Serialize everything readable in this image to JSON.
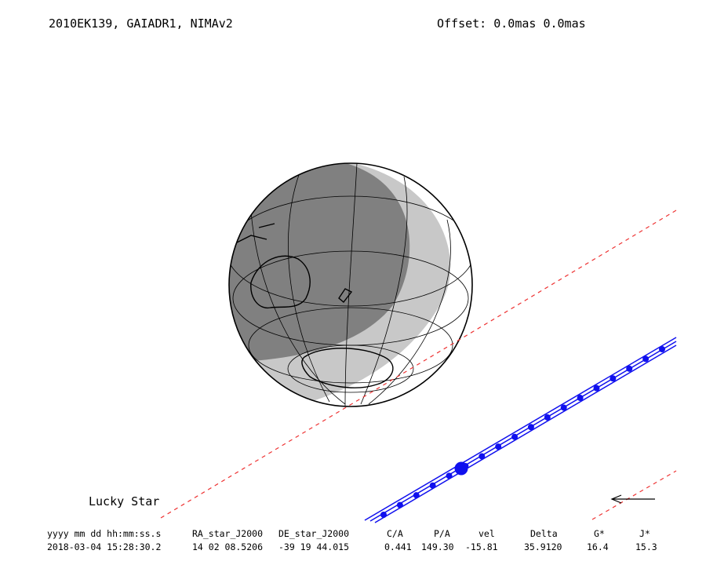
{
  "header": {
    "title": "2010EK139, GAIADR1, NIMAv2",
    "offset": "Offset: 0.0mas 0.0mas"
  },
  "label": "Lucky Star",
  "table": {
    "columns": [
      "yyyy mm dd hh:mm:ss.s",
      "RA_star_J2000",
      "DE_star_J2000",
      "C/A",
      "P/A",
      "vel",
      "Delta",
      "G*",
      "J*"
    ],
    "rows": [
      [
        "2018-03-04 15:28:30.2",
        "14 02 08.5206",
        "-39 19 44.015",
        "0.441",
        "149.30",
        "-15.81",
        "35.9120",
        "16.4",
        "15.3"
      ]
    ]
  }
}
